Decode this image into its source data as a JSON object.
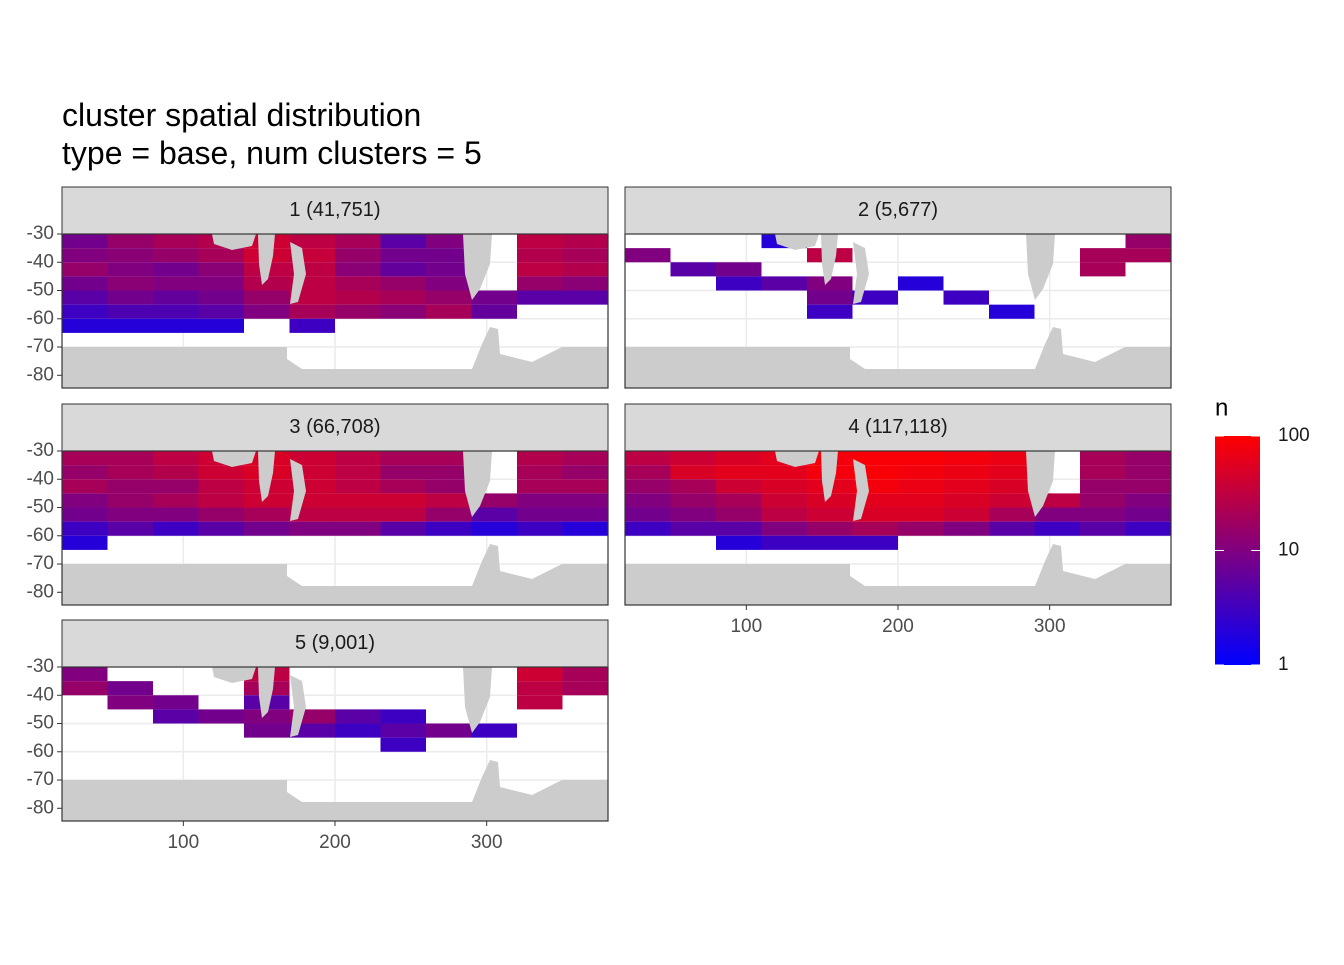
{
  "chart_data": {
    "type": "heatmap",
    "title": "cluster spatial distribution",
    "subtitle": "type = base, num clusters = 5",
    "xlim": [
      20,
      380
    ],
    "ylim": [
      -84.5,
      -30
    ],
    "xticks": [
      100,
      200,
      300
    ],
    "yticks": [
      -30,
      -40,
      -50,
      -60,
      -70,
      -80
    ],
    "lon_bins": [
      20,
      50,
      80,
      110,
      140,
      170,
      200,
      230,
      260,
      290,
      320,
      350,
      380
    ],
    "lat_bins": [
      -30,
      -35,
      -40,
      -45,
      -50,
      -55,
      -60,
      -65
    ],
    "legend": {
      "title": "n",
      "log": true,
      "lim": [
        1,
        100
      ],
      "ticks": [
        1,
        10,
        100
      ],
      "low_color": "#0000ff",
      "high_color": "#ff0000"
    },
    "facets": [
      {
        "label": "1 (41,751)",
        "values": [
          [
            8,
            15,
            20,
            25,
            40,
            30,
            20,
            5,
            10,
            null,
            30,
            25
          ],
          [
            10,
            12,
            15,
            20,
            40,
            35,
            15,
            8,
            8,
            null,
            25,
            20
          ],
          [
            15,
            10,
            8,
            12,
            30,
            30,
            12,
            6,
            8,
            null,
            30,
            25
          ],
          [
            8,
            12,
            10,
            10,
            25,
            30,
            20,
            15,
            10,
            null,
            15,
            12
          ],
          [
            5,
            8,
            6,
            8,
            15,
            30,
            25,
            20,
            15,
            8,
            5,
            5
          ],
          [
            3,
            4,
            4,
            5,
            10,
            20,
            15,
            12,
            20,
            6,
            null,
            null
          ],
          [
            2,
            2,
            2,
            2,
            null,
            3,
            null,
            null,
            null,
            null,
            null,
            null
          ]
        ]
      },
      {
        "label": "2 (5,677)",
        "values": [
          [
            null,
            null,
            null,
            2,
            null,
            null,
            null,
            null,
            null,
            null,
            null,
            15
          ],
          [
            10,
            null,
            null,
            null,
            30,
            null,
            null,
            null,
            null,
            null,
            20,
            20
          ],
          [
            null,
            5,
            8,
            null,
            null,
            null,
            null,
            null,
            null,
            null,
            20,
            null
          ],
          [
            null,
            null,
            3,
            5,
            10,
            null,
            2,
            null,
            null,
            null,
            null,
            null
          ],
          [
            null,
            null,
            null,
            null,
            8,
            3,
            null,
            3,
            null,
            null,
            null,
            null
          ],
          [
            null,
            null,
            null,
            null,
            3,
            null,
            null,
            null,
            2,
            null,
            null,
            null
          ],
          [
            null,
            null,
            null,
            null,
            null,
            null,
            null,
            null,
            null,
            null,
            null,
            null
          ]
        ]
      },
      {
        "label": "3 (66,708)",
        "values": [
          [
            20,
            20,
            30,
            40,
            50,
            40,
            30,
            20,
            20,
            null,
            25,
            20
          ],
          [
            15,
            20,
            25,
            40,
            50,
            40,
            30,
            15,
            15,
            null,
            20,
            15
          ],
          [
            20,
            15,
            15,
            30,
            40,
            40,
            30,
            20,
            15,
            null,
            20,
            20
          ],
          [
            10,
            15,
            20,
            30,
            40,
            40,
            40,
            40,
            30,
            15,
            10,
            10
          ],
          [
            8,
            10,
            10,
            15,
            20,
            30,
            30,
            30,
            15,
            5,
            8,
            8
          ],
          [
            3,
            5,
            3,
            5,
            8,
            10,
            10,
            5,
            3,
            2,
            3,
            2
          ],
          [
            2,
            null,
            null,
            null,
            null,
            null,
            null,
            null,
            null,
            null,
            null,
            null
          ]
        ]
      },
      {
        "label": "4 (117,118)",
        "values": [
          [
            30,
            40,
            50,
            60,
            80,
            90,
            90,
            80,
            70,
            null,
            20,
            15
          ],
          [
            20,
            50,
            60,
            60,
            80,
            90,
            80,
            70,
            60,
            null,
            20,
            15
          ],
          [
            15,
            20,
            40,
            50,
            60,
            80,
            70,
            60,
            50,
            null,
            15,
            15
          ],
          [
            10,
            15,
            20,
            40,
            50,
            60,
            60,
            50,
            40,
            30,
            15,
            10
          ],
          [
            8,
            10,
            15,
            30,
            40,
            50,
            50,
            40,
            20,
            10,
            10,
            8
          ],
          [
            3,
            5,
            5,
            10,
            15,
            20,
            15,
            10,
            5,
            3,
            5,
            3
          ],
          [
            null,
            null,
            2,
            3,
            3,
            3,
            null,
            null,
            null,
            null,
            null,
            null
          ]
        ]
      },
      {
        "label": "5 (9,001)",
        "values": [
          [
            10,
            null,
            null,
            null,
            30,
            null,
            null,
            null,
            null,
            null,
            40,
            20
          ],
          [
            15,
            8,
            null,
            null,
            20,
            null,
            null,
            null,
            null,
            null,
            30,
            20
          ],
          [
            null,
            10,
            8,
            null,
            5,
            null,
            null,
            null,
            null,
            null,
            30,
            null
          ],
          [
            null,
            null,
            5,
            8,
            10,
            15,
            5,
            3,
            null,
            null,
            null,
            null
          ],
          [
            null,
            null,
            null,
            null,
            8,
            5,
            3,
            5,
            8,
            3,
            null,
            null
          ],
          [
            null,
            null,
            null,
            null,
            null,
            null,
            null,
            3,
            null,
            null,
            null,
            null
          ],
          [
            null,
            null,
            null,
            null,
            null,
            null,
            null,
            null,
            null,
            null,
            null,
            null
          ]
        ]
      }
    ]
  }
}
